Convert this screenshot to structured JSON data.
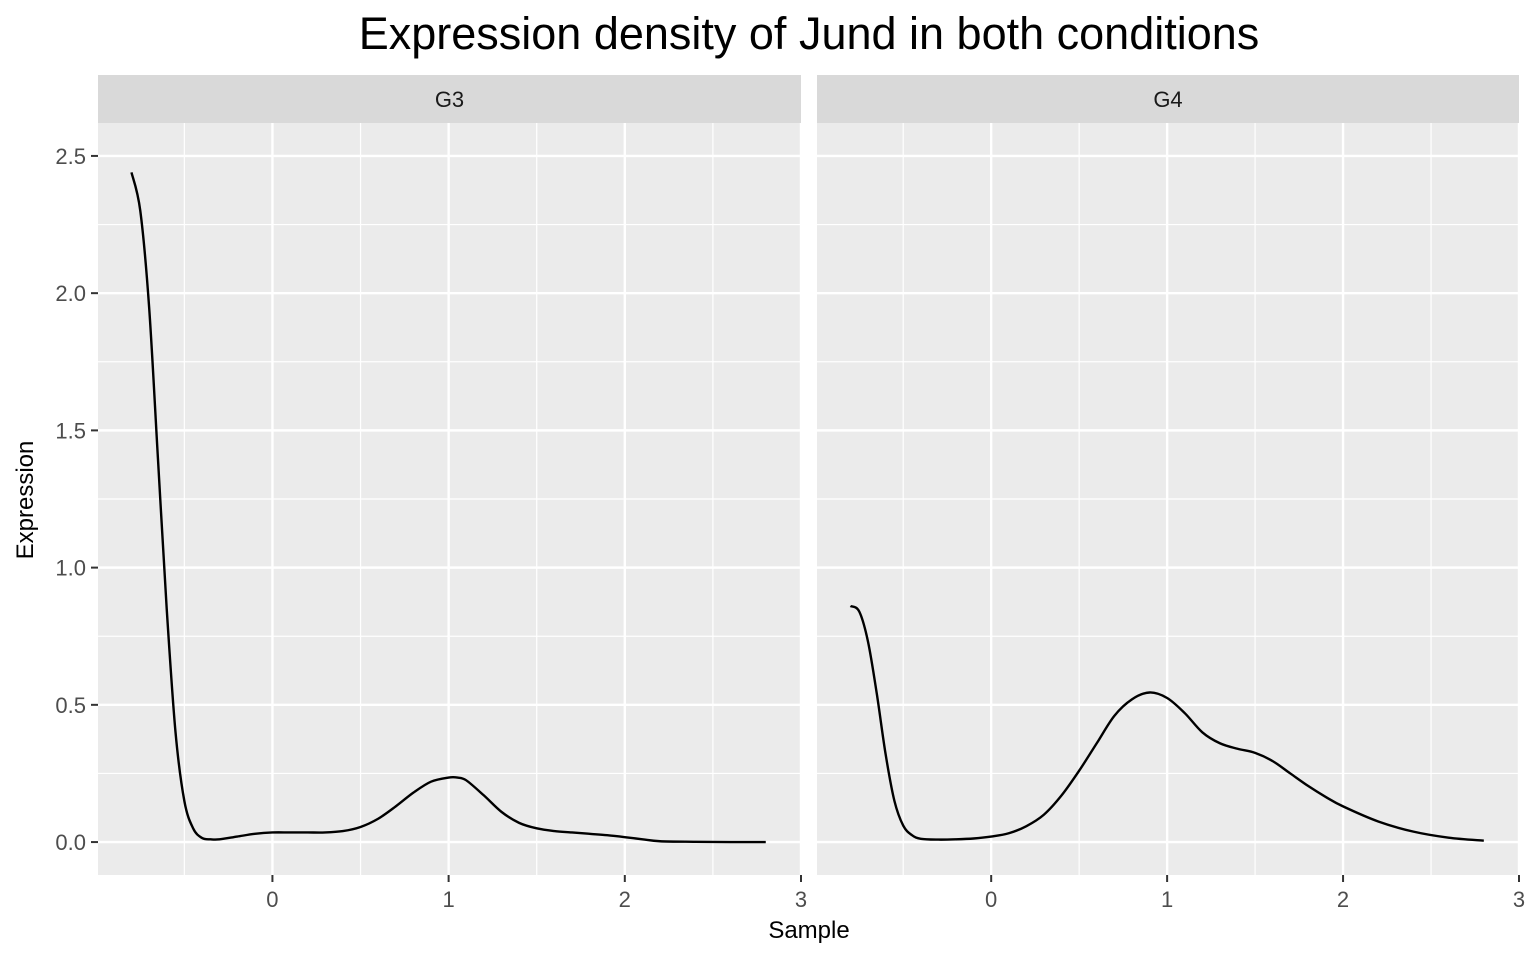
{
  "chart_data": {
    "type": "line",
    "title": "Expression density of Jund in both conditions",
    "xlabel": "Sample",
    "ylabel": "Expression",
    "xlim": [
      -0.99,
      3.0
    ],
    "ylim": [
      -0.12,
      2.62
    ],
    "x_ticks": [
      0,
      1,
      2,
      3
    ],
    "x_tick_labels": [
      "0",
      "1",
      "2",
      "3"
    ],
    "y_ticks": [
      0.0,
      0.5,
      1.0,
      1.5,
      2.0,
      2.5
    ],
    "y_tick_labels": [
      "0.0",
      "0.5",
      "1.0",
      "1.5",
      "2.0",
      "2.5"
    ],
    "grid": true,
    "line_color": "#000000",
    "panels": [
      {
        "name": "G3",
        "x": [
          -0.8,
          -0.75,
          -0.7,
          -0.65,
          -0.6,
          -0.55,
          -0.5,
          -0.45,
          -0.4,
          -0.35,
          -0.3,
          -0.2,
          -0.1,
          0.0,
          0.1,
          0.2,
          0.3,
          0.4,
          0.5,
          0.6,
          0.7,
          0.8,
          0.9,
          1.0,
          1.05,
          1.1,
          1.2,
          1.3,
          1.4,
          1.5,
          1.6,
          1.7,
          1.8,
          1.9,
          2.0,
          2.1,
          2.2,
          2.4,
          2.6,
          2.8
        ],
        "y": [
          2.44,
          2.3,
          1.95,
          1.4,
          0.85,
          0.4,
          0.15,
          0.05,
          0.015,
          0.01,
          0.01,
          0.02,
          0.03,
          0.035,
          0.035,
          0.035,
          0.035,
          0.04,
          0.055,
          0.085,
          0.13,
          0.18,
          0.22,
          0.235,
          0.235,
          0.225,
          0.17,
          0.11,
          0.07,
          0.05,
          0.04,
          0.035,
          0.03,
          0.025,
          0.018,
          0.01,
          0.003,
          0.001,
          0.0,
          0.0
        ]
      },
      {
        "name": "G4",
        "x": [
          -0.8,
          -0.75,
          -0.7,
          -0.65,
          -0.6,
          -0.55,
          -0.5,
          -0.45,
          -0.4,
          -0.3,
          -0.2,
          -0.1,
          0.0,
          0.1,
          0.2,
          0.3,
          0.4,
          0.5,
          0.6,
          0.7,
          0.8,
          0.9,
          1.0,
          1.1,
          1.2,
          1.3,
          1.4,
          1.5,
          1.6,
          1.7,
          1.8,
          1.9,
          2.0,
          2.2,
          2.4,
          2.6,
          2.8
        ],
        "y": [
          0.86,
          0.84,
          0.73,
          0.54,
          0.32,
          0.15,
          0.06,
          0.025,
          0.012,
          0.009,
          0.01,
          0.013,
          0.02,
          0.032,
          0.058,
          0.1,
          0.17,
          0.26,
          0.36,
          0.46,
          0.52,
          0.545,
          0.525,
          0.47,
          0.4,
          0.36,
          0.34,
          0.325,
          0.295,
          0.25,
          0.205,
          0.165,
          0.13,
          0.075,
          0.038,
          0.016,
          0.005
        ]
      }
    ]
  }
}
